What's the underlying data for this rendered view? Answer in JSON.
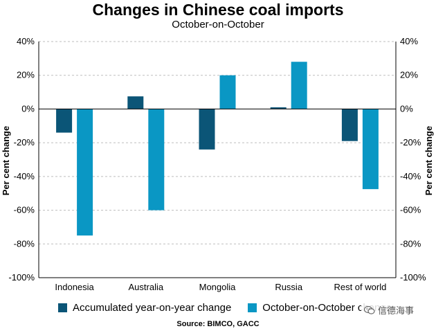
{
  "chart_data": {
    "type": "bar",
    "title": "Changes in Chinese coal imports",
    "subtitle": "October-on-October",
    "ylabel_left": "Per cent change",
    "ylabel_right": "Per cent change",
    "categories": [
      "Indonesia",
      "Australia",
      "Mongolia",
      "Russia",
      "Rest of world"
    ],
    "series": [
      {
        "name": "Accumulated year-on-year change",
        "color": "#0b5577",
        "values": [
          -14,
          7.5,
          -24,
          1,
          -19
        ]
      },
      {
        "name": "October-on-October change",
        "color": "#0a97c4",
        "values": [
          -75,
          -60,
          20,
          28,
          -47.5
        ]
      }
    ],
    "ylim": [
      -100,
      40
    ],
    "yticks": [
      -100,
      -80,
      -60,
      -40,
      -20,
      0,
      20,
      40
    ],
    "ytick_labels": [
      "-100%",
      "-80%",
      "-60%",
      "-40%",
      "-20%",
      "0%",
      "20%",
      "40%"
    ],
    "grid": true,
    "legend_position": "bottom",
    "source": "Source: BIMCO, GACC"
  },
  "watermark": {
    "text": "信德海事",
    "icon": "wechat-icon"
  }
}
